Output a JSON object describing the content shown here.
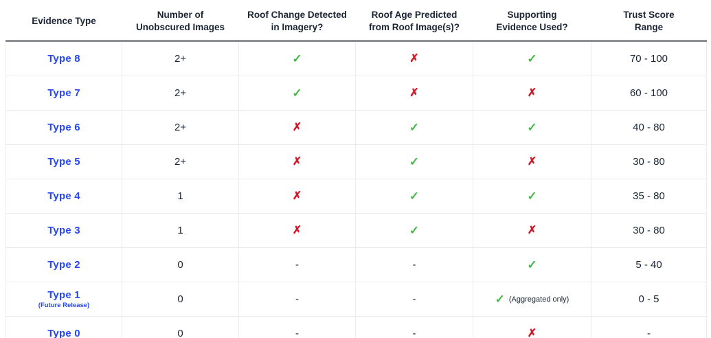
{
  "colors": {
    "header_text": "#1a2433",
    "value_text": "#1a2433",
    "type_link": "#2647f0",
    "check_green": "#46b749",
    "cross_red": "#d01b2a",
    "top_rule": "#8b8e93",
    "bottom_rule": "#b4b7bb",
    "grid_line": "#eaebed"
  },
  "table": {
    "marks": {
      "check": "✓",
      "cross": "✗",
      "dash": "-"
    },
    "columns": [
      {
        "id": "evidence-type",
        "lines": [
          "Evidence Type"
        ]
      },
      {
        "id": "unobscured-images",
        "lines": [
          "Number of",
          "Unobscured Images"
        ]
      },
      {
        "id": "roof-change",
        "lines": [
          "Roof Change Detected",
          "in Imagery?"
        ]
      },
      {
        "id": "roof-age",
        "lines": [
          "Roof Age Predicted",
          "from Roof Image(s)?"
        ]
      },
      {
        "id": "supporting-evidence",
        "lines": [
          "Supporting",
          "Evidence Used?"
        ]
      },
      {
        "id": "trust-score",
        "lines": [
          "Trust Score",
          "Range"
        ]
      }
    ],
    "rows": [
      {
        "label": "Type 8",
        "sublabel": "",
        "unobscured": "2+",
        "roof_change": "check",
        "roof_age": "cross",
        "supporting": "check",
        "supporting_note": "",
        "trust_range": "70 - 100"
      },
      {
        "label": "Type 7",
        "sublabel": "",
        "unobscured": "2+",
        "roof_change": "check",
        "roof_age": "cross",
        "supporting": "cross",
        "supporting_note": "",
        "trust_range": "60 - 100"
      },
      {
        "label": "Type 6",
        "sublabel": "",
        "unobscured": "2+",
        "roof_change": "cross",
        "roof_age": "check",
        "supporting": "check",
        "supporting_note": "",
        "trust_range": "40 - 80"
      },
      {
        "label": "Type 5",
        "sublabel": "",
        "unobscured": "2+",
        "roof_change": "cross",
        "roof_age": "check",
        "supporting": "cross",
        "supporting_note": "",
        "trust_range": "30 - 80"
      },
      {
        "label": "Type 4",
        "sublabel": "",
        "unobscured": "1",
        "roof_change": "cross",
        "roof_age": "check",
        "supporting": "check",
        "supporting_note": "",
        "trust_range": "35 - 80"
      },
      {
        "label": "Type 3",
        "sublabel": "",
        "unobscured": "1",
        "roof_change": "cross",
        "roof_age": "check",
        "supporting": "cross",
        "supporting_note": "",
        "trust_range": "30 - 80"
      },
      {
        "label": "Type 2",
        "sublabel": "",
        "unobscured": "0",
        "roof_change": "dash",
        "roof_age": "dash",
        "supporting": "check",
        "supporting_note": "",
        "trust_range": "5 - 40"
      },
      {
        "label": "Type 1",
        "sublabel": "(Future Release)",
        "unobscured": "0",
        "roof_change": "dash",
        "roof_age": "dash",
        "supporting": "check",
        "supporting_note": "(Aggregated only)",
        "trust_range": "0 - 5"
      },
      {
        "label": "Type 0",
        "sublabel": "",
        "unobscured": "0",
        "roof_change": "dash",
        "roof_age": "dash",
        "supporting": "cross",
        "supporting_note": "",
        "trust_range": "-"
      }
    ]
  }
}
